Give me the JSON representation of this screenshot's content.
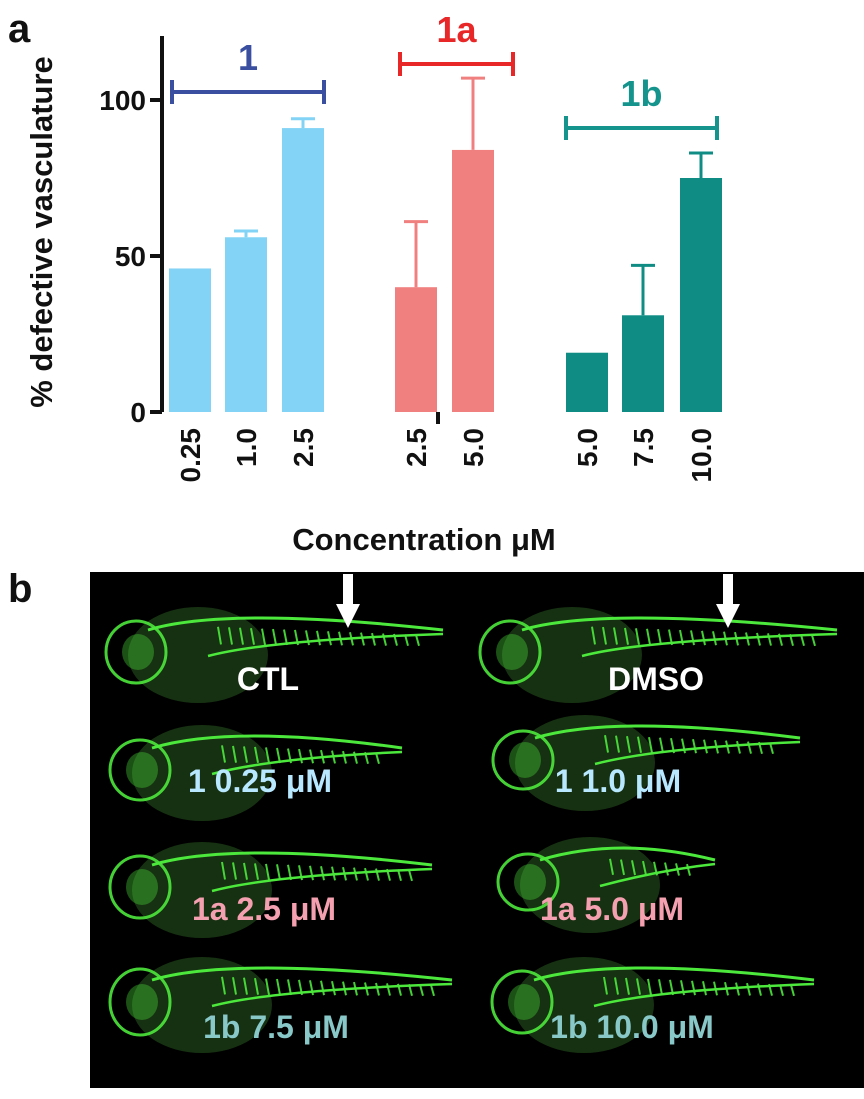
{
  "panels": {
    "a": "a",
    "b": "b"
  },
  "colors": {
    "series_1": "#82d3f5",
    "series_1a": "#f08080",
    "series_1b": "#0f8d85",
    "bracket_1": "#3a4fa0",
    "bracket_1a": "#e82828",
    "bracket_1b": "#14948c",
    "vasculature": "#4ce83c",
    "label_ctl": "#ffffff",
    "label_1": "#b8e8ff",
    "label_1a": "#f5a0b0",
    "label_1b": "#88c8c8"
  },
  "chart_data": {
    "type": "bar",
    "xlabel": "Concentration μM",
    "ylabel": "% defective vasculature",
    "ylim": [
      0,
      120
    ],
    "yticks": [
      0,
      50,
      100
    ],
    "grid": false,
    "groups": [
      {
        "name": "1",
        "color_key": "series_1",
        "bracket_key": "bracket_1",
        "categories": [
          "0.25",
          "1.0",
          "2.5"
        ],
        "values": [
          46,
          56,
          91
        ],
        "errors": [
          0,
          2,
          3
        ]
      },
      {
        "name": "1a",
        "color_key": "series_1a",
        "bracket_key": "bracket_1a",
        "categories": [
          "2.5",
          "5.0"
        ],
        "values": [
          40,
          84
        ],
        "errors": [
          21,
          23
        ]
      },
      {
        "name": "1b",
        "color_key": "series_1b",
        "bracket_key": "bracket_1b",
        "categories": [
          "5.0",
          "7.5",
          "10.0"
        ],
        "values": [
          19,
          31,
          75
        ],
        "errors": [
          0,
          16,
          8
        ]
      }
    ]
  },
  "images": [
    {
      "label": "CTL",
      "color_key": "label_ctl",
      "arrow": true
    },
    {
      "label": "DMSO",
      "color_key": "label_ctl",
      "arrow": true
    },
    {
      "label": "1 0.25 μM",
      "color_key": "label_1",
      "arrow": false
    },
    {
      "label": "1 1.0 μM",
      "color_key": "label_1",
      "arrow": false
    },
    {
      "label": "1a 2.5 μM",
      "color_key": "label_1a",
      "arrow": false
    },
    {
      "label": "1a 5.0 μM",
      "color_key": "label_1a",
      "arrow": false
    },
    {
      "label": "1b 7.5 μM",
      "color_key": "label_1b",
      "arrow": false
    },
    {
      "label": "1b 10.0 μM",
      "color_key": "label_1b",
      "arrow": false
    }
  ]
}
